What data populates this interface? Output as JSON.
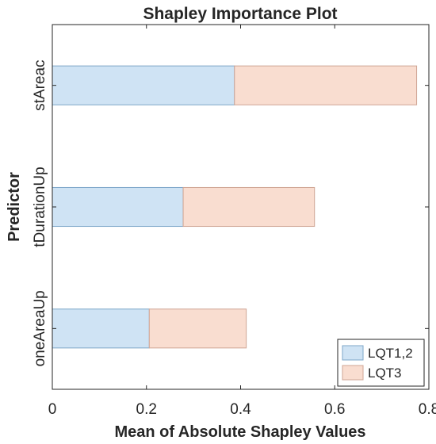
{
  "chart_data": {
    "type": "bar",
    "orientation": "horizontal",
    "stacked": true,
    "title": "Shapley Importance Plot",
    "xlabel": "Mean of Absolute Shapley Values",
    "ylabel": "Predictor",
    "categories": [
      "stAreac",
      "tDurationUp",
      "oneAreaUp"
    ],
    "series": [
      {
        "name": "LQT1,2",
        "values": [
          0.387,
          0.278,
          0.206
        ],
        "color": "#cfe3f4",
        "stroke": "#7ea7c8"
      },
      {
        "name": "LQT3",
        "values": [
          0.387,
          0.279,
          0.206
        ],
        "color": "#f9ddd0",
        "stroke": "#cfa594"
      }
    ],
    "xlim": [
      0,
      0.8
    ],
    "xticks": [
      0,
      0.2,
      0.4,
      0.6,
      0.8
    ],
    "xtick_labels": [
      "0",
      "0.2",
      "0.4",
      "0.6",
      "0.8"
    ],
    "grid": false,
    "legend_position": "bottom-right",
    "colors": {
      "axis": "#262626",
      "background": "#ffffff"
    }
  }
}
